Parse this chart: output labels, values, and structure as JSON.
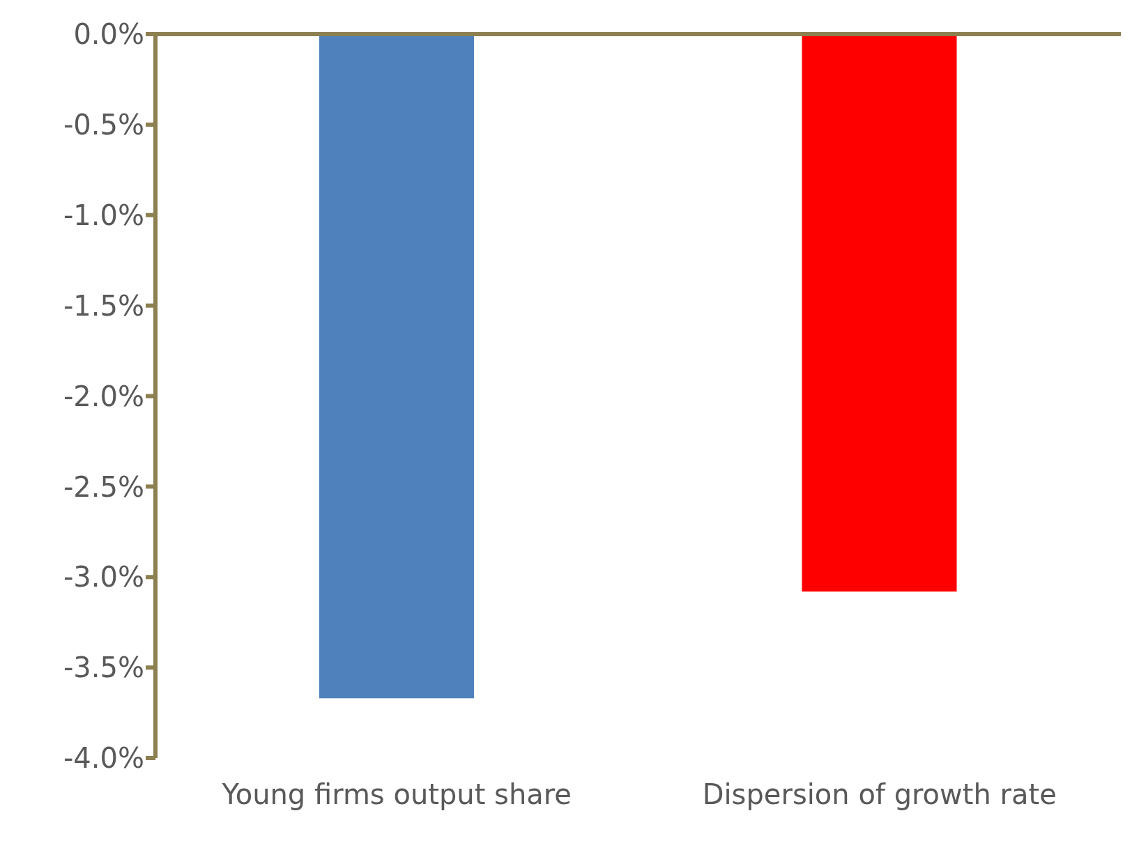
{
  "chart_data": {
    "type": "bar",
    "categories": [
      "Young firms output share",
      "Dispersion of growth rate"
    ],
    "values": [
      -3.67,
      -3.08
    ],
    "colors": [
      "#4f81bd",
      "#ff0000"
    ],
    "ylim": [
      -4,
      0
    ],
    "yticks": [
      {
        "value": 0,
        "label": "0.0%"
      },
      {
        "value": -0.5,
        "label": "-0.5%"
      },
      {
        "value": -1,
        "label": "-1.0%"
      },
      {
        "value": -1.5,
        "label": "-1.5%"
      },
      {
        "value": -2,
        "label": "-2.0%"
      },
      {
        "value": -2.5,
        "label": "-2.5%"
      },
      {
        "value": -3,
        "label": "-3.0%"
      },
      {
        "value": -3.5,
        "label": "-3.5%"
      },
      {
        "value": -4,
        "label": "-4.0%"
      }
    ],
    "grid": false,
    "legend": false
  }
}
